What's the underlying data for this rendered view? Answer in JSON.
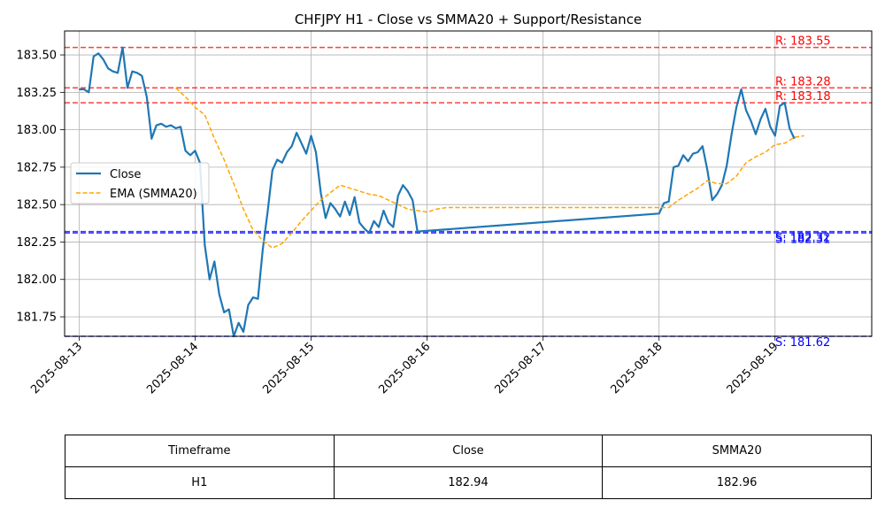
{
  "chart_data": {
    "type": "line",
    "title": "CHFJPY H1 - Close vs SMMA20 + Support/Resistance",
    "xlabel": "",
    "ylabel": "",
    "xlim": [
      "2025-08-12T21:00",
      "2025-08-19T20:00"
    ],
    "ylim": [
      181.62,
      183.66
    ],
    "grid": true,
    "legend": "upper-left",
    "x_ticks": [
      "2025-08-13",
      "2025-08-14",
      "2025-08-15",
      "2025-08-16",
      "2025-08-17",
      "2025-08-18",
      "2025-08-19"
    ],
    "y_ticks": [
      "181.75",
      "182.00",
      "182.25",
      "182.50",
      "182.75",
      "183.00",
      "183.25",
      "183.50"
    ],
    "series": [
      {
        "name": "Close",
        "color": "#1f77b4",
        "style": "solid",
        "points": [
          [
            "2025-08-13T00:00",
            183.27
          ],
          [
            "2025-08-13T01:00",
            183.27
          ],
          [
            "2025-08-13T02:00",
            183.25
          ],
          [
            "2025-08-13T03:00",
            183.49
          ],
          [
            "2025-08-13T04:00",
            183.51
          ],
          [
            "2025-08-13T05:00",
            183.47
          ],
          [
            "2025-08-13T06:00",
            183.41
          ],
          [
            "2025-08-13T07:00",
            183.39
          ],
          [
            "2025-08-13T08:00",
            183.38
          ],
          [
            "2025-08-13T09:00",
            183.55
          ],
          [
            "2025-08-13T10:00",
            183.28
          ],
          [
            "2025-08-13T11:00",
            183.39
          ],
          [
            "2025-08-13T12:00",
            183.38
          ],
          [
            "2025-08-13T13:00",
            183.36
          ],
          [
            "2025-08-13T14:00",
            183.22
          ],
          [
            "2025-08-13T15:00",
            182.94
          ],
          [
            "2025-08-13T16:00",
            183.03
          ],
          [
            "2025-08-13T17:00",
            183.04
          ],
          [
            "2025-08-13T18:00",
            183.02
          ],
          [
            "2025-08-13T19:00",
            183.03
          ],
          [
            "2025-08-13T20:00",
            183.01
          ],
          [
            "2025-08-13T21:00",
            183.02
          ],
          [
            "2025-08-13T22:00",
            182.86
          ],
          [
            "2025-08-13T23:00",
            182.83
          ],
          [
            "2025-08-14T00:00",
            182.86
          ],
          [
            "2025-08-14T01:00",
            182.78
          ],
          [
            "2025-08-14T02:00",
            182.23
          ],
          [
            "2025-08-14T03:00",
            182.0
          ],
          [
            "2025-08-14T04:00",
            182.12
          ],
          [
            "2025-08-14T05:00",
            181.9
          ],
          [
            "2025-08-14T06:00",
            181.78
          ],
          [
            "2025-08-14T07:00",
            181.8
          ],
          [
            "2025-08-14T08:00",
            181.62
          ],
          [
            "2025-08-14T09:00",
            181.71
          ],
          [
            "2025-08-14T10:00",
            181.65
          ],
          [
            "2025-08-14T11:00",
            181.83
          ],
          [
            "2025-08-14T12:00",
            181.88
          ],
          [
            "2025-08-14T13:00",
            181.87
          ],
          [
            "2025-08-14T14:00",
            182.2
          ],
          [
            "2025-08-14T15:00",
            182.45
          ],
          [
            "2025-08-14T16:00",
            182.73
          ],
          [
            "2025-08-14T17:00",
            182.8
          ],
          [
            "2025-08-14T18:00",
            182.78
          ],
          [
            "2025-08-14T19:00",
            182.85
          ],
          [
            "2025-08-14T20:00",
            182.89
          ],
          [
            "2025-08-14T21:00",
            182.98
          ],
          [
            "2025-08-14T22:00",
            182.91
          ],
          [
            "2025-08-14T23:00",
            182.84
          ],
          [
            "2025-08-15T00:00",
            182.96
          ],
          [
            "2025-08-15T01:00",
            182.85
          ],
          [
            "2025-08-15T02:00",
            182.58
          ],
          [
            "2025-08-15T03:00",
            182.41
          ],
          [
            "2025-08-15T04:00",
            182.51
          ],
          [
            "2025-08-15T05:00",
            182.47
          ],
          [
            "2025-08-15T06:00",
            182.42
          ],
          [
            "2025-08-15T07:00",
            182.52
          ],
          [
            "2025-08-15T08:00",
            182.43
          ],
          [
            "2025-08-15T09:00",
            182.55
          ],
          [
            "2025-08-15T10:00",
            182.38
          ],
          [
            "2025-08-15T11:00",
            182.34
          ],
          [
            "2025-08-15T12:00",
            182.31
          ],
          [
            "2025-08-15T13:00",
            182.39
          ],
          [
            "2025-08-15T14:00",
            182.35
          ],
          [
            "2025-08-15T15:00",
            182.46
          ],
          [
            "2025-08-15T16:00",
            182.38
          ],
          [
            "2025-08-15T17:00",
            182.35
          ],
          [
            "2025-08-15T18:00",
            182.56
          ],
          [
            "2025-08-15T19:00",
            182.63
          ],
          [
            "2025-08-15T20:00",
            182.59
          ],
          [
            "2025-08-15T21:00",
            182.53
          ],
          [
            "2025-08-15T22:00",
            182.32
          ],
          [
            "2025-08-18T00:00",
            182.44
          ],
          [
            "2025-08-18T01:00",
            182.51
          ],
          [
            "2025-08-18T02:00",
            182.52
          ],
          [
            "2025-08-18T03:00",
            182.75
          ],
          [
            "2025-08-18T04:00",
            182.76
          ],
          [
            "2025-08-18T05:00",
            182.83
          ],
          [
            "2025-08-18T06:00",
            182.79
          ],
          [
            "2025-08-18T07:00",
            182.84
          ],
          [
            "2025-08-18T08:00",
            182.85
          ],
          [
            "2025-08-18T09:00",
            182.89
          ],
          [
            "2025-08-18T10:00",
            182.73
          ],
          [
            "2025-08-18T11:00",
            182.53
          ],
          [
            "2025-08-18T12:00",
            182.57
          ],
          [
            "2025-08-18T13:00",
            182.63
          ],
          [
            "2025-08-18T14:00",
            182.76
          ],
          [
            "2025-08-18T15:00",
            182.97
          ],
          [
            "2025-08-18T16:00",
            183.15
          ],
          [
            "2025-08-18T17:00",
            183.27
          ],
          [
            "2025-08-18T18:00",
            183.13
          ],
          [
            "2025-08-18T19:00",
            183.06
          ],
          [
            "2025-08-18T20:00",
            182.97
          ],
          [
            "2025-08-18T21:00",
            183.07
          ],
          [
            "2025-08-18T22:00",
            183.14
          ],
          [
            "2025-08-18T23:00",
            183.02
          ],
          [
            "2025-08-19T00:00",
            182.96
          ],
          [
            "2025-08-19T01:00",
            183.16
          ],
          [
            "2025-08-19T02:00",
            183.18
          ],
          [
            "2025-08-19T03:00",
            183.01
          ],
          [
            "2025-08-19T04:00",
            182.94
          ]
        ]
      },
      {
        "name": "EMA (SMMA20)",
        "color": "#ffa500",
        "style": "dashed",
        "points": [
          [
            "2025-08-13T20:00",
            183.28
          ],
          [
            "2025-08-13T22:00",
            183.22
          ],
          [
            "2025-08-14T00:00",
            183.15
          ],
          [
            "2025-08-14T02:00",
            183.1
          ],
          [
            "2025-08-14T04:00",
            182.94
          ],
          [
            "2025-08-14T06:00",
            182.8
          ],
          [
            "2025-08-14T08:00",
            182.64
          ],
          [
            "2025-08-14T10:00",
            182.47
          ],
          [
            "2025-08-14T12:00",
            182.33
          ],
          [
            "2025-08-14T14:00",
            182.26
          ],
          [
            "2025-08-14T16:00",
            182.21
          ],
          [
            "2025-08-14T18:00",
            182.24
          ],
          [
            "2025-08-14T20:00",
            182.31
          ],
          [
            "2025-08-14T22:00",
            182.39
          ],
          [
            "2025-08-15T00:00",
            182.46
          ],
          [
            "2025-08-15T02:00",
            182.53
          ],
          [
            "2025-08-15T04:00",
            182.58
          ],
          [
            "2025-08-15T06:00",
            182.63
          ],
          [
            "2025-08-15T08:00",
            182.61
          ],
          [
            "2025-08-15T10:00",
            182.59
          ],
          [
            "2025-08-15T12:00",
            182.57
          ],
          [
            "2025-08-15T14:00",
            182.56
          ],
          [
            "2025-08-15T16:00",
            182.53
          ],
          [
            "2025-08-15T18:00",
            182.5
          ],
          [
            "2025-08-15T20:00",
            182.47
          ],
          [
            "2025-08-15T22:00",
            182.46
          ],
          [
            "2025-08-16T00:00",
            182.45
          ],
          [
            "2025-08-16T02:00",
            182.47
          ],
          [
            "2025-08-16T04:00",
            182.48
          ],
          [
            "2025-08-18T00:00",
            182.48
          ],
          [
            "2025-08-18T02:00",
            182.48
          ],
          [
            "2025-08-18T04:00",
            182.53
          ],
          [
            "2025-08-18T06:00",
            182.57
          ],
          [
            "2025-08-18T08:00",
            182.61
          ],
          [
            "2025-08-18T10:00",
            182.66
          ],
          [
            "2025-08-18T12:00",
            182.64
          ],
          [
            "2025-08-18T14:00",
            182.64
          ],
          [
            "2025-08-18T16:00",
            182.69
          ],
          [
            "2025-08-18T18:00",
            182.78
          ],
          [
            "2025-08-18T20:00",
            182.82
          ],
          [
            "2025-08-18T22:00",
            182.85
          ],
          [
            "2025-08-19T00:00",
            182.9
          ],
          [
            "2025-08-19T02:00",
            182.91
          ],
          [
            "2025-08-19T04:00",
            182.95
          ],
          [
            "2025-08-19T06:00",
            182.96
          ]
        ]
      }
    ],
    "levels": [
      {
        "kind": "resistance",
        "value": 183.55,
        "label": "R: 183.55",
        "color": "#ff0000"
      },
      {
        "kind": "resistance",
        "value": 183.28,
        "label": "R: 183.28",
        "color": "#ff0000"
      },
      {
        "kind": "resistance",
        "value": 183.18,
        "label": "R: 183.18",
        "color": "#ff0000"
      },
      {
        "kind": "support",
        "value": 182.32,
        "label": "S: 182.32",
        "color": "#0000ff"
      },
      {
        "kind": "support",
        "value": 182.31,
        "label": "S: 182.31",
        "color": "#0000ff"
      },
      {
        "kind": "support",
        "value": 181.62,
        "label": "S: 181.62",
        "color": "#0000ff"
      }
    ]
  },
  "table": {
    "headers": [
      "Timeframe",
      "Close",
      "SMMA20"
    ],
    "row": [
      "H1",
      "182.94",
      "182.96"
    ]
  }
}
